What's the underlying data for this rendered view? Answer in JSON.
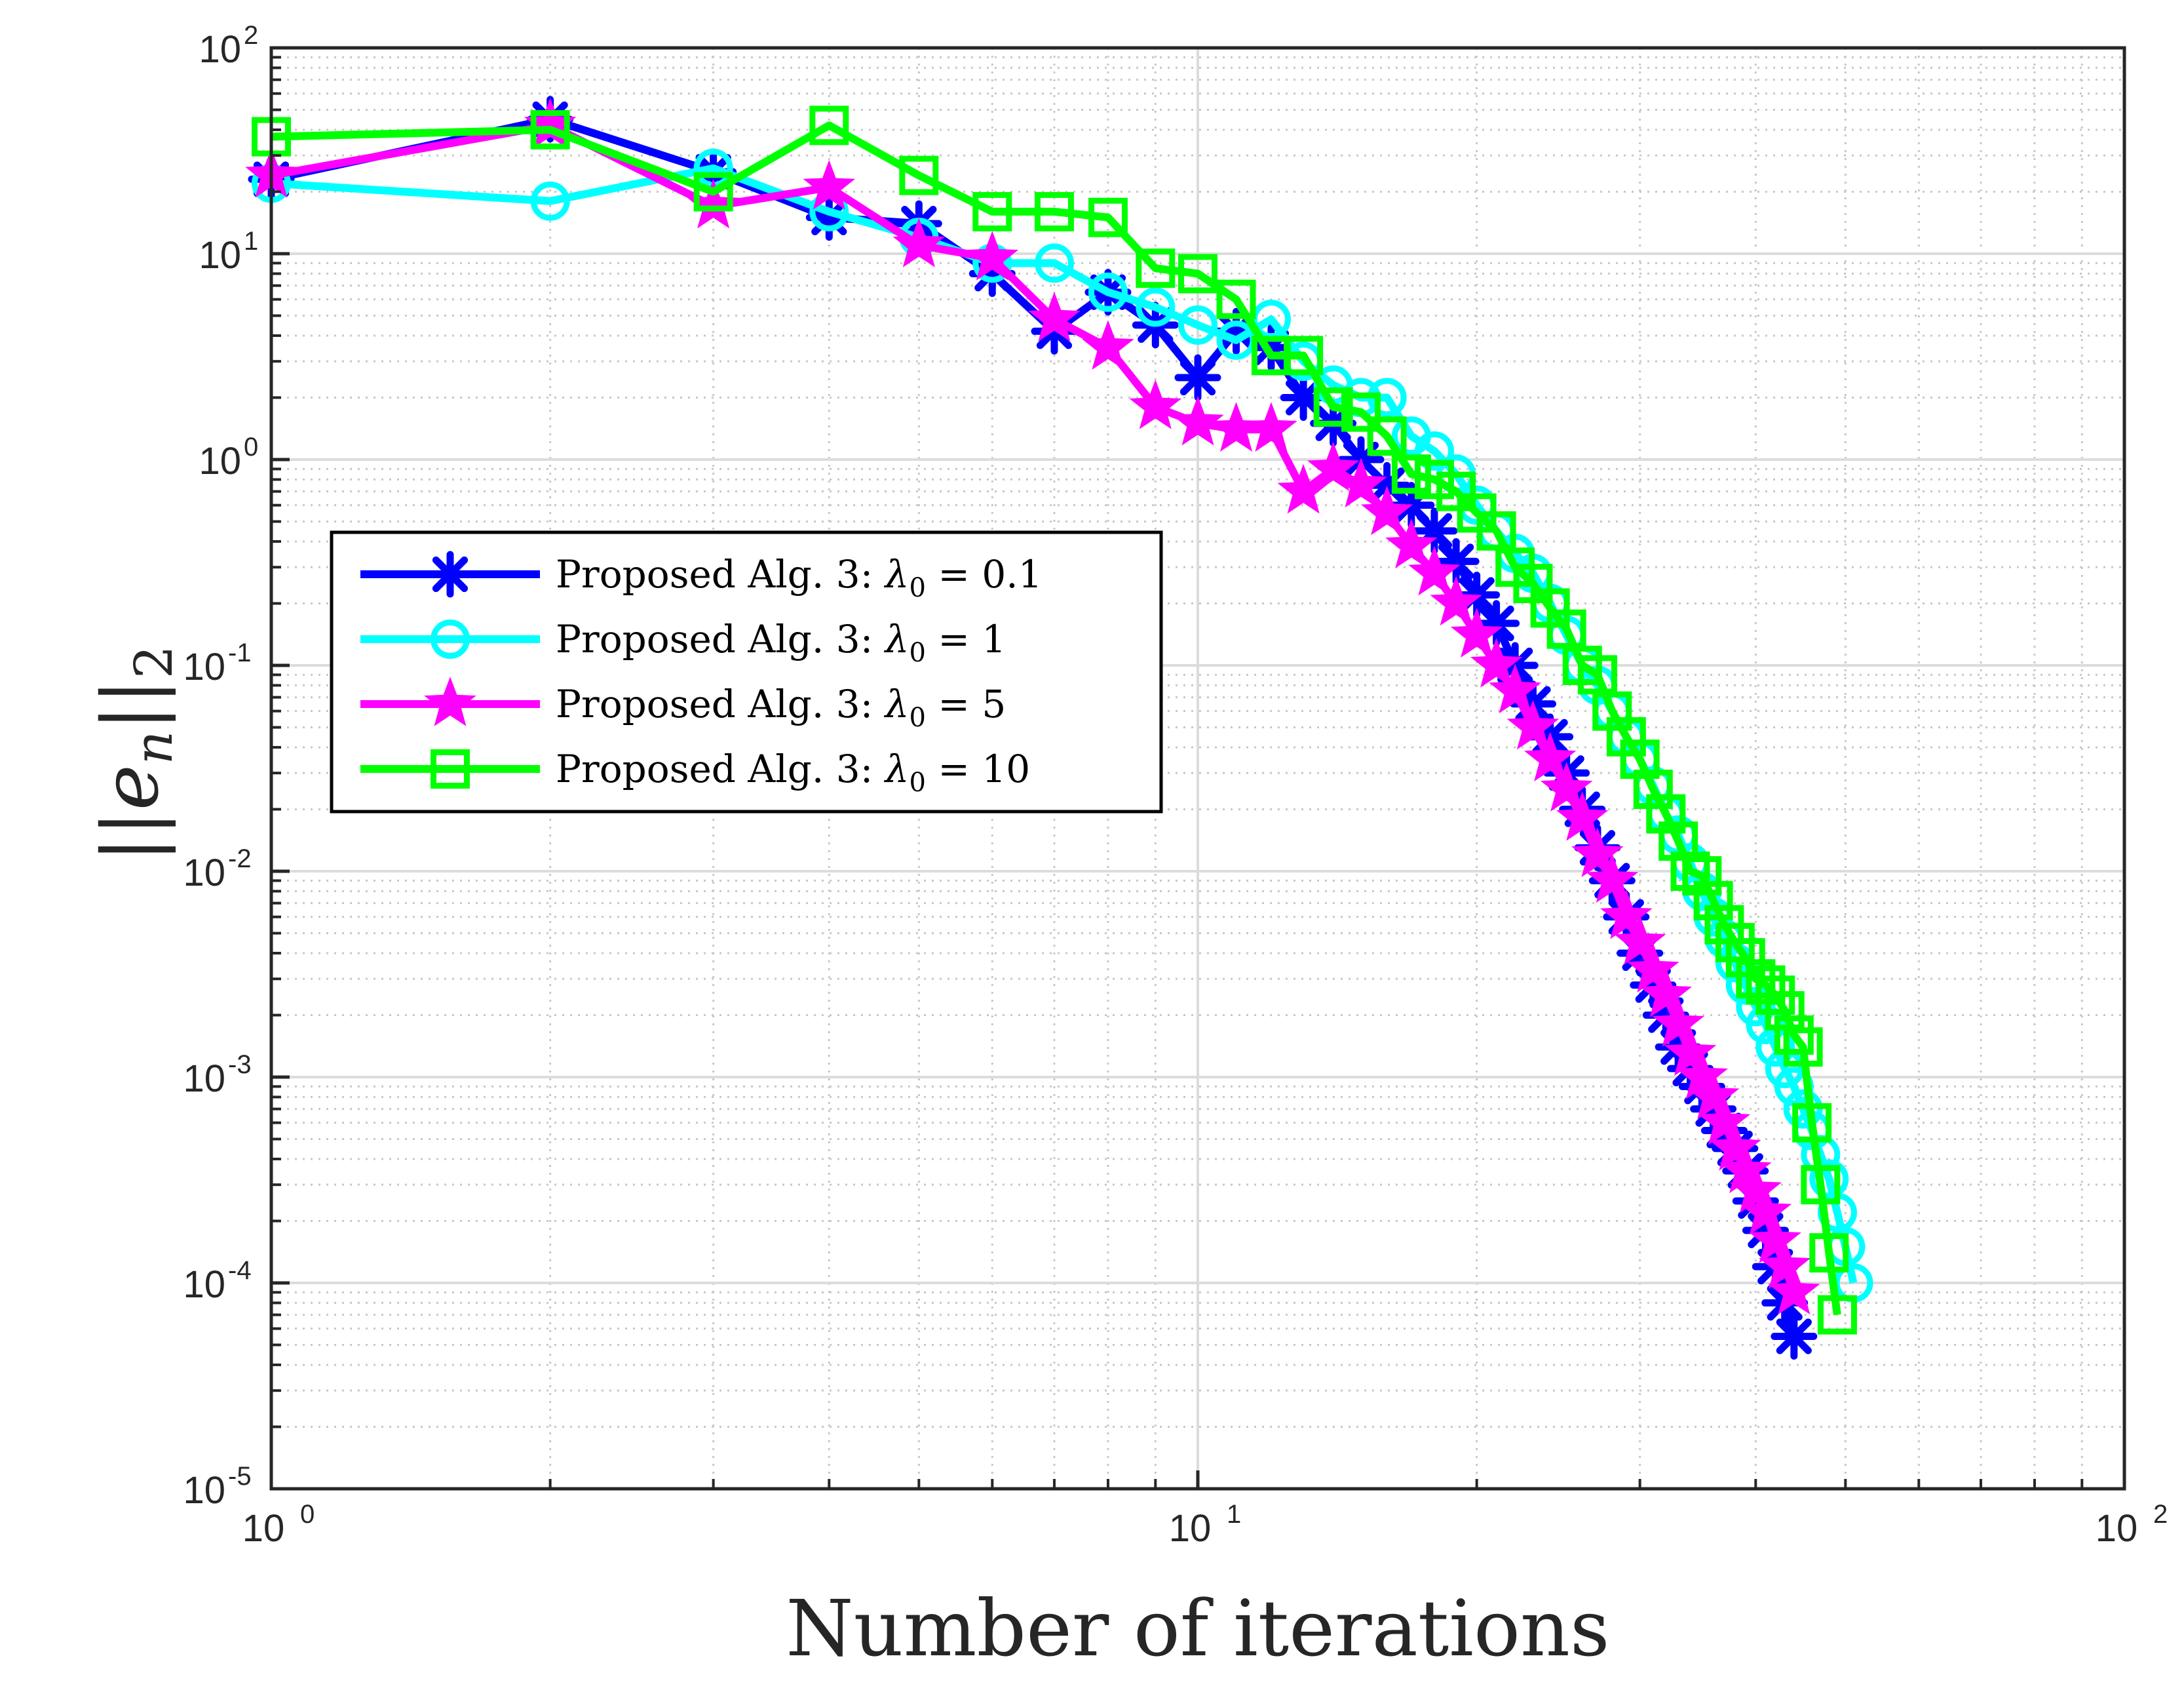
{
  "chart_data": {
    "type": "line",
    "xscale": "log",
    "yscale": "log",
    "xlabel": "Number of iterations",
    "ylabel": "||e_n||_2",
    "ylabel_parts": {
      "bars_open": "||",
      "base": "e",
      "sub": "n",
      "bars_close": "||",
      "tail": "2"
    },
    "xlim": [
      1,
      100
    ],
    "ylim": [
      1e-05,
      100
    ],
    "grid": true,
    "minor_grid": true,
    "legend_position": "center-left",
    "xticks": [
      {
        "value": 1,
        "base": "10",
        "exp": "0"
      },
      {
        "value": 10,
        "base": "10",
        "exp": "1"
      },
      {
        "value": 100,
        "base": "10",
        "exp": "2"
      }
    ],
    "yticks": [
      {
        "value": 100,
        "base": "10",
        "exp": "2"
      },
      {
        "value": 10,
        "base": "10",
        "exp": "1"
      },
      {
        "value": 1,
        "base": "10",
        "exp": "0"
      },
      {
        "value": 0.1,
        "base": "10",
        "exp": "-1"
      },
      {
        "value": 0.01,
        "base": "10",
        "exp": "-2"
      },
      {
        "value": 0.001,
        "base": "10",
        "exp": "-3"
      },
      {
        "value": 0.0001,
        "base": "10",
        "exp": "-4"
      },
      {
        "value": 1e-05,
        "base": "10",
        "exp": "-5"
      }
    ],
    "series": [
      {
        "name": "Proposed Alg. 3: λ0 = 0.1",
        "label_text": "Proposed Alg. 3:",
        "lambda_sym": "λ",
        "lambda_sub": "0",
        "lambda_val": "= 0.1",
        "color": "#0000ff",
        "marker": "asterisk",
        "x": [
          1,
          2,
          3,
          4,
          5,
          6,
          7,
          8,
          9,
          10,
          11,
          12,
          13,
          14,
          15,
          16,
          17,
          18,
          19,
          20,
          21,
          22,
          23,
          24,
          25,
          26,
          27,
          28,
          29,
          30,
          31,
          32,
          33,
          34,
          35,
          36,
          37,
          38,
          39,
          40,
          41,
          42,
          43,
          44
        ],
        "y": [
          23,
          45,
          25,
          15,
          14,
          8,
          4.2,
          6.5,
          4.5,
          2.5,
          4.2,
          3.5,
          2.0,
          1.5,
          1.0,
          0.75,
          0.6,
          0.45,
          0.32,
          0.22,
          0.16,
          0.1,
          0.065,
          0.045,
          0.03,
          0.02,
          0.013,
          0.009,
          0.006,
          0.004,
          0.0028,
          0.002,
          0.0014,
          0.0011,
          0.0009,
          0.0007,
          0.00055,
          0.00045,
          0.00035,
          0.00025,
          0.00018,
          0.00012,
          8e-05,
          5.5e-05
        ]
      },
      {
        "name": "Proposed Alg. 3: λ0 = 1",
        "label_text": "Proposed Alg. 3:",
        "lambda_sym": "λ",
        "lambda_sub": "0",
        "lambda_val": "= 1",
        "color": "#00ffff",
        "marker": "circle",
        "x": [
          1,
          2,
          3,
          4,
          5,
          6,
          7,
          8,
          9,
          10,
          11,
          12,
          13,
          14,
          15,
          16,
          17,
          18,
          19,
          20,
          21,
          22,
          23,
          24,
          25,
          26,
          27,
          28,
          29,
          30,
          31,
          32,
          33,
          34,
          35,
          36,
          37,
          38,
          39,
          40,
          41,
          42,
          43,
          44,
          45,
          46,
          47,
          48,
          49,
          50,
          51
        ],
        "y": [
          22,
          18,
          26,
          16,
          12,
          9,
          9,
          6.5,
          5.5,
          4.5,
          3.8,
          4.8,
          3.0,
          2.3,
          2.0,
          2.0,
          1.3,
          1.1,
          0.85,
          0.6,
          0.45,
          0.35,
          0.28,
          0.2,
          0.14,
          0.1,
          0.08,
          0.06,
          0.045,
          0.035,
          0.026,
          0.019,
          0.015,
          0.011,
          0.008,
          0.006,
          0.0047,
          0.0036,
          0.0028,
          0.0022,
          0.0018,
          0.0014,
          0.0011,
          0.0009,
          0.0007,
          0.00055,
          0.00042,
          0.00032,
          0.00022,
          0.00015,
          0.0001
        ]
      },
      {
        "name": "Proposed Alg. 3: λ0 = 5",
        "label_text": "Proposed Alg. 3:",
        "lambda_sym": "λ",
        "lambda_sub": "0",
        "lambda_val": "= 5",
        "color": "#ff00ff",
        "marker": "pentagram",
        "x": [
          1,
          2,
          3,
          4,
          5,
          6,
          7,
          8,
          9,
          10,
          11,
          12,
          13,
          14,
          15,
          16,
          17,
          18,
          19,
          20,
          21,
          22,
          23,
          24,
          25,
          26,
          27,
          28,
          29,
          30,
          31,
          32,
          33,
          34,
          35,
          36,
          37,
          38,
          39,
          40,
          41,
          42,
          43,
          44
        ],
        "y": [
          24,
          42,
          17,
          21,
          11,
          9.5,
          4.8,
          3.5,
          1.8,
          1.5,
          1.4,
          1.4,
          0.7,
          0.9,
          0.75,
          0.55,
          0.38,
          0.28,
          0.2,
          0.14,
          0.1,
          0.075,
          0.05,
          0.035,
          0.025,
          0.018,
          0.012,
          0.009,
          0.006,
          0.0045,
          0.0033,
          0.0025,
          0.0018,
          0.0013,
          0.001,
          0.0008,
          0.0006,
          0.00045,
          0.00035,
          0.00028,
          0.00022,
          0.00016,
          0.00012,
          9e-05
        ]
      },
      {
        "name": "Proposed Alg. 3: λ0 = 10",
        "label_text": "Proposed Alg. 3:",
        "lambda_sym": "λ",
        "lambda_sub": "0",
        "lambda_val": "= 10",
        "color": "#00ff00",
        "marker": "square",
        "x": [
          1,
          2,
          3,
          4,
          5,
          6,
          7,
          8,
          9,
          10,
          11,
          12,
          13,
          14,
          15,
          16,
          17,
          18,
          19,
          20,
          21,
          22,
          23,
          24,
          25,
          26,
          27,
          28,
          29,
          30,
          31,
          32,
          33,
          34,
          35,
          36,
          37,
          38,
          39,
          40,
          41,
          42,
          43,
          44,
          45,
          46,
          47,
          48,
          49
        ],
        "y": [
          37,
          40,
          20,
          42,
          24,
          16,
          16,
          15,
          8.5,
          8,
          6,
          3.2,
          3.2,
          1.8,
          1.7,
          1.3,
          0.85,
          0.8,
          0.7,
          0.55,
          0.45,
          0.3,
          0.25,
          0.19,
          0.15,
          0.1,
          0.09,
          0.06,
          0.045,
          0.035,
          0.025,
          0.019,
          0.014,
          0.01,
          0.0095,
          0.0072,
          0.0055,
          0.0045,
          0.0038,
          0.003,
          0.0028,
          0.0025,
          0.0021,
          0.0016,
          0.0014,
          0.0006,
          0.0003,
          0.00014,
          7e-05
        ]
      }
    ]
  }
}
